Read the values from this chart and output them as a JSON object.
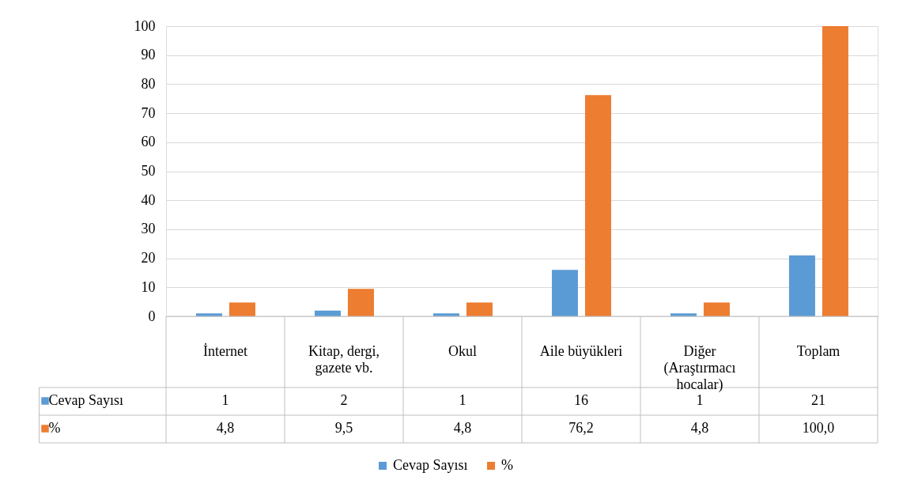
{
  "chart_data": {
    "type": "bar",
    "categories": [
      "İnternet",
      "Kitap, dergi, gazete vb.",
      "Okul",
      "Aile büyükleri",
      "Diğer (Araştırmacı hocalar)",
      "Toplam"
    ],
    "series": [
      {
        "name": "Cevap Sayısı",
        "color": "#5b9bd5",
        "values": [
          1,
          2,
          1,
          16,
          1,
          21
        ],
        "value_labels": [
          "1",
          "2",
          "1",
          "16",
          "1",
          "21"
        ]
      },
      {
        "name": "%",
        "color": "#ed7d31",
        "values": [
          4.8,
          9.5,
          4.8,
          76.2,
          4.8,
          100.0
        ],
        "value_labels": [
          "4,8",
          "9,5",
          "4,8",
          "76,2",
          "4,8",
          "100,0"
        ]
      }
    ],
    "ylim": [
      0,
      100
    ],
    "yticks": [
      0,
      10,
      20,
      30,
      40,
      50,
      60,
      70,
      80,
      90,
      100
    ],
    "grid": "y",
    "legend": "bottom"
  }
}
